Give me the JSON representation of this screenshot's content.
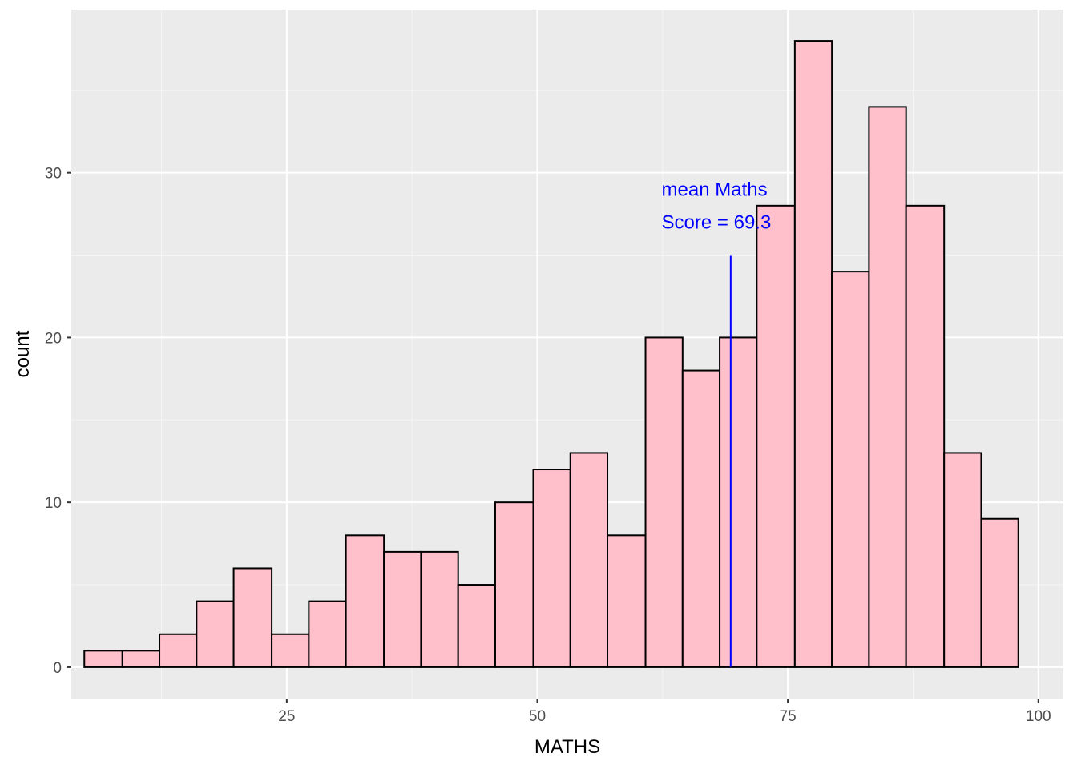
{
  "chart_data": {
    "type": "bar",
    "subtype": "histogram",
    "xlabel": "MATHS",
    "ylabel": "count",
    "xlim": [
      3.5,
      102.5
    ],
    "ylim": [
      -1.9,
      39.9
    ],
    "x_ticks": [
      25,
      50,
      75,
      100
    ],
    "x_tick_labels": [
      "25",
      "50",
      "75",
      "100"
    ],
    "y_ticks": [
      0,
      10,
      20,
      30
    ],
    "y_tick_labels": [
      "0",
      "10",
      "20",
      "30"
    ],
    "grid": true,
    "legend": "none",
    "bin_width": 3.73,
    "bins": [
      {
        "x0": 4.8,
        "x1": 8.6,
        "count": 1
      },
      {
        "x0": 8.6,
        "x1": 12.3,
        "count": 1
      },
      {
        "x0": 12.3,
        "x1": 16.0,
        "count": 2
      },
      {
        "x0": 16.0,
        "x1": 19.7,
        "count": 4
      },
      {
        "x0": 19.7,
        "x1": 23.5,
        "count": 6
      },
      {
        "x0": 23.5,
        "x1": 27.2,
        "count": 2
      },
      {
        "x0": 27.2,
        "x1": 30.9,
        "count": 4
      },
      {
        "x0": 30.9,
        "x1": 34.7,
        "count": 8
      },
      {
        "x0": 34.7,
        "x1": 38.4,
        "count": 7
      },
      {
        "x0": 38.4,
        "x1": 42.1,
        "count": 7
      },
      {
        "x0": 42.1,
        "x1": 45.8,
        "count": 5
      },
      {
        "x0": 45.8,
        "x1": 49.6,
        "count": 10
      },
      {
        "x0": 49.6,
        "x1": 53.3,
        "count": 12
      },
      {
        "x0": 53.3,
        "x1": 57.0,
        "count": 13
      },
      {
        "x0": 57.0,
        "x1": 60.8,
        "count": 8
      },
      {
        "x0": 60.8,
        "x1": 64.5,
        "count": 20
      },
      {
        "x0": 64.5,
        "x1": 68.2,
        "count": 18
      },
      {
        "x0": 68.2,
        "x1": 71.9,
        "count": 20
      },
      {
        "x0": 71.9,
        "x1": 75.7,
        "count": 28
      },
      {
        "x0": 75.7,
        "x1": 79.4,
        "count": 38
      },
      {
        "x0": 79.4,
        "x1": 83.1,
        "count": 24
      },
      {
        "x0": 83.1,
        "x1": 86.8,
        "count": 34
      },
      {
        "x0": 86.8,
        "x1": 90.6,
        "count": 28
      },
      {
        "x0": 90.6,
        "x1": 94.3,
        "count": 13
      },
      {
        "x0": 94.3,
        "x1": 98.0,
        "count": 9
      }
    ],
    "mean_line": {
      "x": 69.3,
      "y_from": 0,
      "y_to": 25,
      "color": "#0000ff"
    },
    "annotation": {
      "lines": [
        "mean Maths",
        "Score = 69.3"
      ],
      "x": 62.4,
      "y_lines": [
        29,
        27
      ],
      "color": "#0000ff"
    },
    "colors": {
      "bar_fill": "#ffc0cb",
      "bar_stroke": "#000000",
      "panel_background": "#ebebeb",
      "grid_major": "#ffffff",
      "grid_minor": "#f5f5f5"
    }
  }
}
